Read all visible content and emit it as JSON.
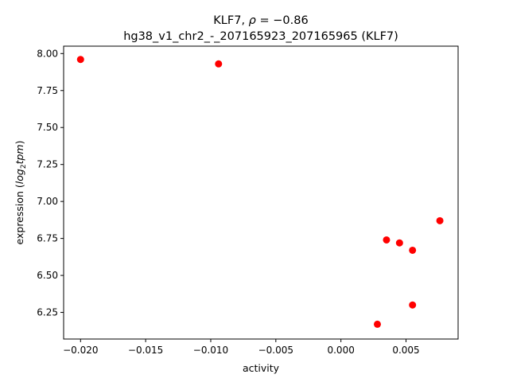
{
  "chart_data": {
    "type": "scatter",
    "title_line1_text": "KLF7, ",
    "title_line1_rho": "ρ",
    "title_line1_value": " = −0.86",
    "title_line2": "hg38_v1_chr2_-_207165923_207165965 (KLF7)",
    "xlabel": "activity",
    "ylabel_prefix": "expression (",
    "ylabel_italic": "log",
    "ylabel_sub": "2",
    "ylabel_italic2": "tpm",
    "ylabel_suffix": ")",
    "xlim": [
      -0.0213,
      0.009
    ],
    "ylim": [
      6.07,
      8.05
    ],
    "x_ticks": [
      -0.02,
      -0.015,
      -0.01,
      -0.005,
      0.0,
      0.005
    ],
    "x_tick_labels": [
      "−0.020",
      "−0.015",
      "−0.010",
      "−0.005",
      "0.000",
      "0.005"
    ],
    "y_ticks": [
      6.25,
      6.5,
      6.75,
      7.0,
      7.25,
      7.5,
      7.75,
      8.0
    ],
    "y_tick_labels": [
      "6.25",
      "6.50",
      "6.75",
      "7.00",
      "7.25",
      "7.50",
      "7.75",
      "8.00"
    ],
    "point_color": "#ff0000",
    "grid": false,
    "points": [
      {
        "x": -0.02,
        "y": 7.96
      },
      {
        "x": -0.0094,
        "y": 7.93
      },
      {
        "x": 0.0076,
        "y": 6.87
      },
      {
        "x": 0.0035,
        "y": 6.74
      },
      {
        "x": 0.0045,
        "y": 6.72
      },
      {
        "x": 0.0055,
        "y": 6.67
      },
      {
        "x": 0.0055,
        "y": 6.3
      },
      {
        "x": 0.0028,
        "y": 6.17
      }
    ]
  }
}
